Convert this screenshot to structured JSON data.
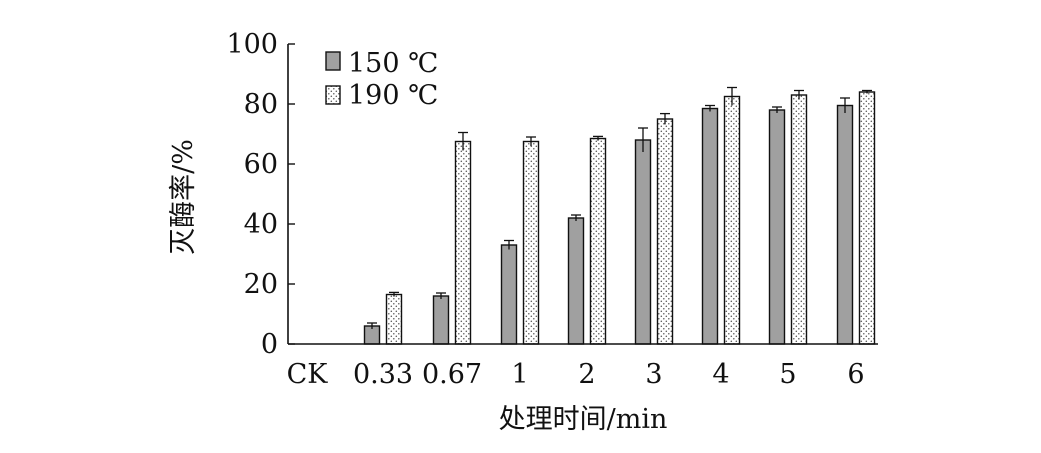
{
  "chart_data": {
    "type": "bar",
    "title": "",
    "xlabel": "处理时间/min",
    "ylabel": "灭酶率/%",
    "categories": [
      "CK",
      "0.33",
      "0.67",
      "1",
      "2",
      "3",
      "4",
      "5",
      "6"
    ],
    "ylim": [
      0,
      100
    ],
    "yticks": [
      0,
      20,
      40,
      60,
      80,
      100
    ],
    "grid": false,
    "legend_position": "top-left",
    "series": [
      {
        "name": "150 ℃",
        "fill": "#a0a0a0",
        "pattern": "solid",
        "values": [
          0,
          6,
          16,
          33,
          42,
          68,
          78.5,
          78,
          79.5
        ],
        "errors": [
          0,
          1,
          1,
          1.5,
          1,
          4,
          1,
          1,
          2.5
        ]
      },
      {
        "name": "190 ℃",
        "fill": "#ffffff",
        "pattern": "dots",
        "values": [
          0,
          16.5,
          67.5,
          67.5,
          68.5,
          75,
          82.5,
          83,
          84
        ],
        "errors": [
          0,
          0.7,
          3,
          1.5,
          0.7,
          1.8,
          3,
          1.5,
          0.5
        ]
      }
    ]
  }
}
